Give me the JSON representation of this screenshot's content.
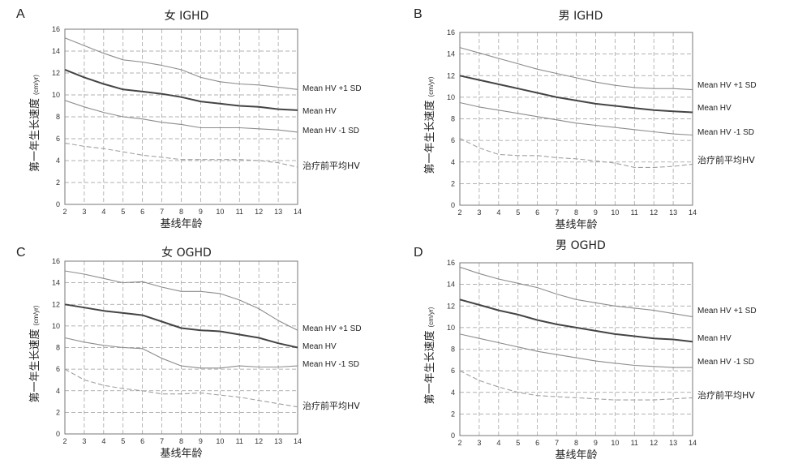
{
  "chart_data": [
    {
      "panel": "A",
      "type": "line",
      "title": "女 IGHD",
      "xlabel": "基线年龄",
      "ylabel": "第一年生长速度",
      "ylabel_unit": "(cm/yr)",
      "xlim": [
        2,
        14
      ],
      "ylim": [
        0,
        16
      ],
      "xticks": [
        2,
        3,
        4,
        5,
        6,
        7,
        8,
        9,
        10,
        11,
        12,
        13,
        14
      ],
      "yticks": [
        0,
        2,
        4,
        6,
        8,
        10,
        12,
        14,
        16
      ],
      "grid": true,
      "x": [
        2,
        3,
        4,
        5,
        6,
        7,
        8,
        9,
        10,
        11,
        12,
        13,
        14
      ],
      "series": [
        {
          "name": "Mean HV +1 SD",
          "style": "thin",
          "color": "#8c8c8c",
          "values": [
            15.2,
            14.5,
            13.8,
            13.2,
            13.0,
            12.7,
            12.3,
            11.6,
            11.2,
            11.0,
            10.9,
            10.7,
            10.5
          ]
        },
        {
          "name": "Mean HV",
          "style": "bold",
          "color": "#444444",
          "values": [
            12.3,
            11.6,
            11.0,
            10.5,
            10.3,
            10.1,
            9.8,
            9.4,
            9.2,
            9.0,
            8.9,
            8.7,
            8.6
          ]
        },
        {
          "name": "Mean HV -1 SD",
          "style": "thin",
          "color": "#8c8c8c",
          "values": [
            9.5,
            8.9,
            8.4,
            8.0,
            7.8,
            7.5,
            7.3,
            7.0,
            7.0,
            7.0,
            6.9,
            6.8,
            6.6
          ]
        },
        {
          "name": "治疗前平均HV",
          "style": "dashed",
          "color": "#a0a0a0",
          "values": [
            5.6,
            5.3,
            5.1,
            4.8,
            4.5,
            4.3,
            4.1,
            4.1,
            4.1,
            4.1,
            4.0,
            3.8,
            3.4
          ]
        }
      ]
    },
    {
      "panel": "B",
      "type": "line",
      "title": "男 IGHD",
      "xlabel": "基线年龄",
      "ylabel": "第一年生长速度",
      "ylabel_unit": "(cm/yr)",
      "xlim": [
        2,
        14
      ],
      "ylim": [
        0,
        16
      ],
      "xticks": [
        2,
        3,
        4,
        5,
        6,
        7,
        8,
        9,
        10,
        11,
        12,
        13,
        14
      ],
      "yticks": [
        0,
        2,
        4,
        6,
        8,
        10,
        12,
        14,
        16
      ],
      "grid": true,
      "x": [
        2,
        3,
        4,
        5,
        6,
        7,
        8,
        9,
        10,
        11,
        12,
        13,
        14
      ],
      "series": [
        {
          "name": "Mean HV +1 SD",
          "style": "thin",
          "color": "#8c8c8c",
          "values": [
            14.6,
            14.1,
            13.6,
            13.1,
            12.6,
            12.2,
            11.8,
            11.4,
            11.1,
            10.9,
            10.8,
            10.8,
            10.7
          ]
        },
        {
          "name": "Mean HV",
          "style": "bold",
          "color": "#444444",
          "values": [
            12.0,
            11.6,
            11.2,
            10.8,
            10.4,
            10.0,
            9.7,
            9.4,
            9.2,
            9.0,
            8.8,
            8.7,
            8.6
          ]
        },
        {
          "name": "Mean HV -1 SD",
          "style": "thin",
          "color": "#8c8c8c",
          "values": [
            9.5,
            9.1,
            8.8,
            8.5,
            8.2,
            7.9,
            7.6,
            7.4,
            7.2,
            7.0,
            6.8,
            6.6,
            6.5
          ]
        },
        {
          "name": "治疗前平均HV",
          "style": "dashed",
          "color": "#a0a0a0",
          "values": [
            6.2,
            5.3,
            4.7,
            4.6,
            4.6,
            4.4,
            4.3,
            4.1,
            3.9,
            3.5,
            3.5,
            3.6,
            3.8
          ]
        }
      ]
    },
    {
      "panel": "C",
      "type": "line",
      "title": "女 OGHD",
      "xlabel": "基线年龄",
      "ylabel": "第一年生长速度",
      "ylabel_unit": "(cm/yr)",
      "xlim": [
        2,
        14
      ],
      "ylim": [
        0,
        16
      ],
      "xticks": [
        2,
        3,
        4,
        5,
        6,
        7,
        8,
        9,
        10,
        11,
        12,
        13,
        14
      ],
      "yticks": [
        0,
        2,
        4,
        6,
        8,
        10,
        12,
        14,
        16
      ],
      "grid": true,
      "x": [
        2,
        3,
        4,
        5,
        6,
        7,
        8,
        9,
        10,
        11,
        12,
        13,
        14
      ],
      "series": [
        {
          "name": "Mean HV +1 SD",
          "style": "thin",
          "color": "#8c8c8c",
          "values": [
            15.1,
            14.8,
            14.4,
            14.0,
            14.1,
            13.6,
            13.2,
            13.2,
            13.0,
            12.4,
            11.6,
            10.5,
            9.6
          ]
        },
        {
          "name": "Mean HV",
          "style": "bold",
          "color": "#444444",
          "values": [
            12.0,
            11.7,
            11.4,
            11.2,
            11.0,
            10.4,
            9.8,
            9.6,
            9.5,
            9.2,
            8.9,
            8.4,
            8.0
          ]
        },
        {
          "name": "Mean HV -1 SD",
          "style": "thin",
          "color": "#8c8c8c",
          "values": [
            8.9,
            8.5,
            8.2,
            8.0,
            7.9,
            7.0,
            6.3,
            6.1,
            6.1,
            6.3,
            6.2,
            6.2,
            6.3
          ]
        },
        {
          "name": "治疗前平均HV",
          "style": "dashed",
          "color": "#a0a0a0",
          "values": [
            6.0,
            5.0,
            4.5,
            4.2,
            4.0,
            3.7,
            3.7,
            3.8,
            3.6,
            3.4,
            3.1,
            2.8,
            2.5
          ]
        }
      ]
    },
    {
      "panel": "D",
      "type": "line",
      "title": "男 OGHD",
      "xlabel": "基线年龄",
      "ylabel": "第一年生长速度",
      "ylabel_unit": "(cm/yr)",
      "xlim": [
        2,
        14
      ],
      "ylim": [
        0,
        16
      ],
      "xticks": [
        2,
        3,
        4,
        5,
        6,
        7,
        8,
        9,
        10,
        11,
        12,
        13,
        14
      ],
      "yticks": [
        0,
        2,
        4,
        6,
        8,
        10,
        12,
        14,
        16
      ],
      "grid": true,
      "x": [
        2,
        3,
        4,
        5,
        6,
        7,
        8,
        9,
        10,
        11,
        12,
        13,
        14
      ],
      "series": [
        {
          "name": "Mean HV +1 SD",
          "style": "thin",
          "color": "#8c8c8c",
          "values": [
            15.6,
            15.0,
            14.5,
            14.1,
            13.7,
            13.1,
            12.6,
            12.3,
            12.0,
            11.8,
            11.6,
            11.3,
            11.0
          ]
        },
        {
          "name": "Mean HV",
          "style": "bold",
          "color": "#444444",
          "values": [
            12.6,
            12.1,
            11.6,
            11.2,
            10.7,
            10.3,
            10.0,
            9.7,
            9.4,
            9.2,
            9.0,
            8.9,
            8.7
          ]
        },
        {
          "name": "Mean HV -1 SD",
          "style": "thin",
          "color": "#8c8c8c",
          "values": [
            9.4,
            9.0,
            8.6,
            8.2,
            7.8,
            7.5,
            7.2,
            6.9,
            6.7,
            6.5,
            6.4,
            6.3,
            6.3
          ]
        },
        {
          "name": "治疗前平均HV",
          "style": "dashed",
          "color": "#a0a0a0",
          "values": [
            6.0,
            5.1,
            4.5,
            4.0,
            3.7,
            3.6,
            3.5,
            3.4,
            3.3,
            3.3,
            3.3,
            3.4,
            3.5
          ]
        }
      ]
    }
  ]
}
